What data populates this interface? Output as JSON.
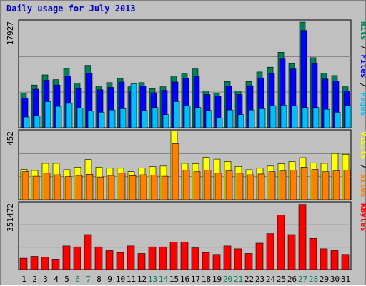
{
  "title": "Daily usage for July 2013",
  "chart_data": [
    {
      "type": "bar",
      "panel": "Pages / Files / Hits",
      "ymax_label": "17927",
      "ymax": 17927,
      "days": [
        1,
        2,
        3,
        4,
        5,
        6,
        7,
        8,
        9,
        10,
        11,
        12,
        13,
        14,
        15,
        16,
        17,
        18,
        19,
        20,
        21,
        22,
        23,
        24,
        25,
        26,
        27,
        28,
        29,
        30,
        31
      ],
      "series": [
        {
          "name": "Hits",
          "color": "#00805c",
          "values": [
            5800,
            7200,
            8900,
            8100,
            10000,
            7500,
            10500,
            7000,
            7600,
            8300,
            6900,
            7600,
            6600,
            6900,
            8700,
            9200,
            9900,
            6200,
            5800,
            7800,
            6200,
            7800,
            9400,
            10200,
            12700,
            10800,
            17800,
            11800,
            9200,
            8800,
            6900
          ]
        },
        {
          "name": "Files",
          "color": "#0000ff",
          "values": [
            5000,
            6500,
            8000,
            7200,
            8700,
            6600,
            9200,
            6400,
            6800,
            7700,
            6200,
            7000,
            5900,
            6300,
            7700,
            8300,
            8600,
            5600,
            5300,
            7000,
            5600,
            7100,
            8400,
            9100,
            11600,
            9900,
            16400,
            10800,
            8200,
            7900,
            6200
          ]
        },
        {
          "name": "Pages",
          "color": "#00bfff",
          "values": [
            1800,
            2000,
            4400,
            3600,
            4100,
            3300,
            2800,
            2600,
            3000,
            3200,
            7400,
            2900,
            3400,
            2200,
            4400,
            3700,
            3400,
            2900,
            1600,
            3000,
            2200,
            3000,
            3200,
            3700,
            3800,
            3700,
            3400,
            3400,
            3100,
            2600,
            3700
          ]
        }
      ]
    },
    {
      "type": "bar",
      "panel": "Sites / Visits",
      "ymax_label": "452",
      "ymax": 452,
      "days": [
        1,
        2,
        3,
        4,
        5,
        6,
        7,
        8,
        9,
        10,
        11,
        12,
        13,
        14,
        15,
        16,
        17,
        18,
        19,
        20,
        21,
        22,
        23,
        24,
        25,
        26,
        27,
        28,
        29,
        30,
        31
      ],
      "series": [
        {
          "name": "Visits",
          "color": "#ffff00",
          "values": [
            200,
            193,
            240,
            240,
            198,
            215,
            265,
            215,
            208,
            208,
            185,
            210,
            218,
            222,
            455,
            240,
            238,
            280,
            268,
            252,
            220,
            198,
            208,
            222,
            238,
            252,
            278,
            242,
            240,
            305,
            300
          ]
        },
        {
          "name": "Sites",
          "color": "#ff8000",
          "values": [
            185,
            155,
            175,
            165,
            152,
            160,
            168,
            150,
            160,
            175,
            158,
            165,
            162,
            155,
            370,
            195,
            185,
            195,
            175,
            190,
            175,
            165,
            170,
            185,
            190,
            195,
            215,
            200,
            185,
            190,
            195
          ]
        }
      ]
    },
    {
      "type": "bar",
      "panel": "KBytes",
      "ymax_label": "351472",
      "ymax": 351472,
      "days": [
        1,
        2,
        3,
        4,
        5,
        6,
        7,
        8,
        9,
        10,
        11,
        12,
        13,
        14,
        15,
        16,
        17,
        18,
        19,
        20,
        21,
        22,
        23,
        24,
        25,
        26,
        27,
        28,
        29,
        30,
        31
      ],
      "series": [
        {
          "name": "KBytes",
          "color": "#ff0000",
          "values": [
            60000,
            70000,
            65000,
            55000,
            125000,
            120000,
            185000,
            120000,
            100000,
            90000,
            125000,
            85000,
            120000,
            120000,
            145000,
            145000,
            115000,
            90000,
            80000,
            125000,
            110000,
            85000,
            140000,
            190000,
            290000,
            185000,
            345000,
            165000,
            110000,
            100000,
            80000
          ]
        }
      ]
    }
  ],
  "x_ticks": [
    "1",
    "2",
    "3",
    "4",
    "5",
    "6",
    "7",
    "8",
    "9",
    "10",
    "11",
    "12",
    "13",
    "14",
    "15",
    "16",
    "17",
    "18",
    "19",
    "20",
    "21",
    "22",
    "23",
    "24",
    "25",
    "26",
    "27",
    "28",
    "29",
    "30",
    "31"
  ],
  "weekend_days": [
    6,
    7,
    13,
    14,
    20,
    21,
    27,
    28
  ],
  "right_labels": {
    "panel1": [
      {
        "text": "Hits",
        "color": "#00805c"
      },
      {
        "text": "/",
        "color": "#000000"
      },
      {
        "text": "Files",
        "color": "#0000ff"
      },
      {
        "text": "/",
        "color": "#000000"
      },
      {
        "text": "Pages",
        "color": "#00bfff"
      }
    ],
    "panel2": [
      {
        "text": "Visits",
        "color": "#ffff00"
      },
      {
        "text": "/",
        "color": "#000000"
      },
      {
        "text": "Sites",
        "color": "#ff8000"
      }
    ],
    "panel3": [
      {
        "text": "KBytes",
        "color": "#ff0000"
      }
    ]
  },
  "colors": {
    "background": "#c0c0c0",
    "title": "#0000c0",
    "axis_text": "#000000",
    "weekend_text": "#00805c"
  }
}
